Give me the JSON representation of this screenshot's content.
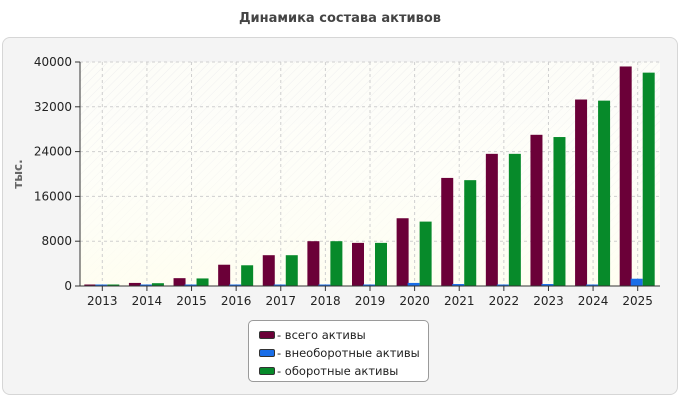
{
  "chart_data": {
    "type": "bar",
    "title": "Динамика состава активов",
    "ylabel": "тыс.",
    "xlabel": "",
    "ylim": [
      0,
      40000
    ],
    "yticks": [
      0,
      8000,
      16000,
      24000,
      32000,
      40000
    ],
    "categories": [
      "2013",
      "2014",
      "2015",
      "2016",
      "2017",
      "2018",
      "2019",
      "2020",
      "2021",
      "2022",
      "2023",
      "2024",
      "2025"
    ],
    "series": [
      {
        "name": "- всего активы",
        "color": "#6b0038",
        "values": [
          200,
          550,
          1400,
          3800,
          5500,
          8000,
          7700,
          12100,
          19300,
          23600,
          27000,
          33300,
          39200
        ]
      },
      {
        "name": "- внеоборотные активы",
        "color": "#1a6ee8",
        "values": [
          80,
          100,
          150,
          150,
          180,
          150,
          150,
          550,
          350,
          200,
          350,
          250,
          1300
        ]
      },
      {
        "name": "- оборотные активы",
        "color": "#078a2a",
        "values": [
          150,
          500,
          1350,
          3700,
          5500,
          8000,
          7700,
          11500,
          18900,
          23600,
          26600,
          33100,
          38100
        ]
      }
    ],
    "grid": true,
    "legend_position": "bottom-center"
  }
}
